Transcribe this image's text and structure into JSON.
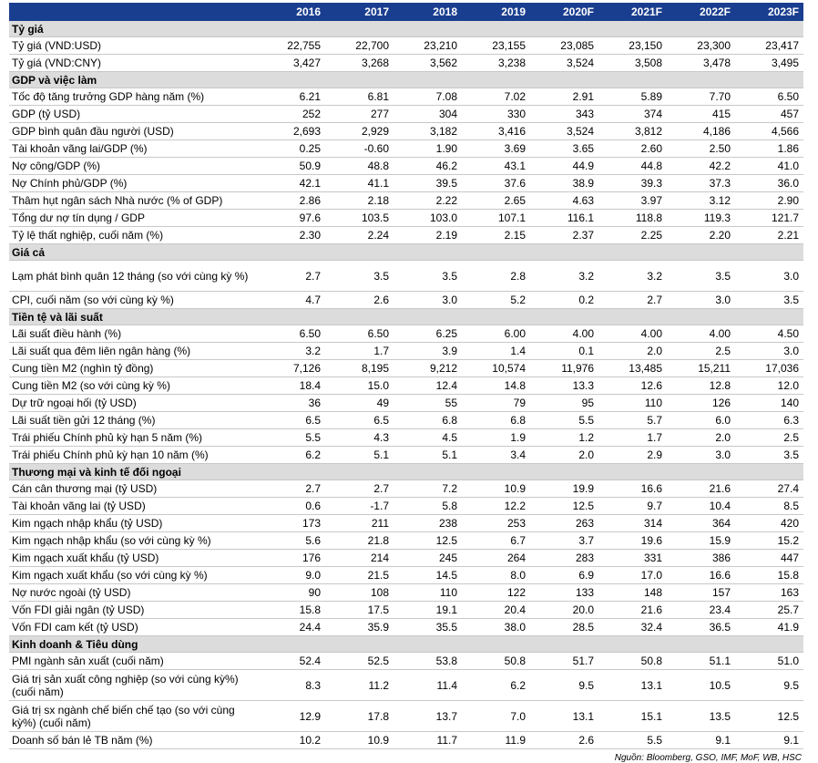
{
  "headers": [
    "",
    "2016",
    "2017",
    "2018",
    "2019",
    "2020F",
    "2021F",
    "2022F",
    "2023F"
  ],
  "sections": [
    {
      "title": "Tỷ giá",
      "rows": [
        {
          "label": "Tỷ giá (VND:USD)",
          "values": [
            "22,755",
            "22,700",
            "23,210",
            "23,155",
            "23,085",
            "23,150",
            "23,300",
            "23,417"
          ]
        },
        {
          "label": "Tỷ giá (VND:CNY)",
          "values": [
            "3,427",
            "3,268",
            "3,562",
            "3,238",
            "3,524",
            "3,508",
            "3,478",
            "3,495"
          ]
        }
      ]
    },
    {
      "title": "GDP và việc làm",
      "rows": [
        {
          "label": "Tốc độ tăng trưởng GDP hàng năm (%)",
          "values": [
            "6.21",
            "6.81",
            "7.08",
            "7.02",
            "2.91",
            "5.89",
            "7.70",
            "6.50"
          ]
        },
        {
          "label": "GDP (tỷ USD)",
          "values": [
            "252",
            "277",
            "304",
            "330",
            "343",
            "374",
            "415",
            "457"
          ]
        },
        {
          "label": "GDP bình quân đầu người (USD)",
          "values": [
            "2,693",
            "2,929",
            "3,182",
            "3,416",
            "3,524",
            "3,812",
            "4,186",
            "4,566"
          ]
        },
        {
          "label": "Tài khoản vãng lai/GDP (%)",
          "values": [
            "0.25",
            "-0.60",
            "1.90",
            "3.69",
            "3.65",
            "2.60",
            "2.50",
            "1.86"
          ]
        },
        {
          "label": "Nợ công/GDP (%)",
          "values": [
            "50.9",
            "48.8",
            "46.2",
            "43.1",
            "44.9",
            "44.8",
            "42.2",
            "41.0"
          ]
        },
        {
          "label": "Nợ Chính phủ/GDP (%)",
          "values": [
            "42.1",
            "41.1",
            "39.5",
            "37.6",
            "38.9",
            "39.3",
            "37.3",
            "36.0"
          ]
        },
        {
          "label": "Thâm hụt ngân sách Nhà nước (% of GDP)",
          "values": [
            "2.86",
            "2.18",
            "2.22",
            "2.65",
            "4.63",
            "3.97",
            "3.12",
            "2.90"
          ]
        },
        {
          "label": "Tổng dư nợ tín dụng / GDP",
          "values": [
            "97.6",
            "103.5",
            "103.0",
            "107.1",
            "116.1",
            "118.8",
            "119.3",
            "121.7"
          ]
        },
        {
          "label": "Tỷ lệ thất nghiệp, cuối năm (%)",
          "values": [
            "2.30",
            "2.24",
            "2.19",
            "2.15",
            "2.37",
            "2.25",
            "2.20",
            "2.21"
          ]
        }
      ]
    },
    {
      "title": "Giá cả",
      "rows": [
        {
          "label": "Lạm phát bình quân 12 tháng (so với cùng kỳ %)",
          "values": [
            "2.7",
            "3.5",
            "3.5",
            "2.8",
            "3.2",
            "3.2",
            "3.5",
            "3.0"
          ],
          "two_line": true
        },
        {
          "label": "CPI, cuối năm (so với cùng kỳ %)",
          "values": [
            "4.7",
            "2.6",
            "3.0",
            "5.2",
            "0.2",
            "2.7",
            "3.0",
            "3.5"
          ]
        }
      ]
    },
    {
      "title": "Tiền tệ và lãi suất",
      "rows": [
        {
          "label": "Lãi suất điều hành (%)",
          "values": [
            "6.50",
            "6.50",
            "6.25",
            "6.00",
            "4.00",
            "4.00",
            "4.00",
            "4.50"
          ]
        },
        {
          "label": "Lãi suất qua đêm liên ngân hàng (%)",
          "values": [
            "3.2",
            "1.7",
            "3.9",
            "1.4",
            "0.1",
            "2.0",
            "2.5",
            "3.0"
          ]
        },
        {
          "label": "Cung tiền M2 (nghìn tỷ đồng)",
          "values": [
            "7,126",
            "8,195",
            "9,212",
            "10,574",
            "11,976",
            "13,485",
            "15,211",
            "17,036"
          ]
        },
        {
          "label": "Cung tiền M2 (so với cùng kỳ %)",
          "values": [
            "18.4",
            "15.0",
            "12.4",
            "14.8",
            "13.3",
            "12.6",
            "12.8",
            "12.0"
          ]
        },
        {
          "label": "Dự trữ ngoại hối (tỷ USD)",
          "values": [
            "36",
            "49",
            "55",
            "79",
            "95",
            "110",
            "126",
            "140"
          ]
        },
        {
          "label": "Lãi suất tiền gửi 12 tháng (%)",
          "values": [
            "6.5",
            "6.5",
            "6.8",
            "6.8",
            "5.5",
            "5.7",
            "6.0",
            "6.3"
          ]
        },
        {
          "label": "Trái phiếu Chính phủ kỳ hạn 5 năm (%)",
          "values": [
            "5.5",
            "4.3",
            "4.5",
            "1.9",
            "1.2",
            "1.7",
            "2.0",
            "2.5"
          ]
        },
        {
          "label": "Trái phiếu Chính phủ kỳ hạn 10 năm (%)",
          "values": [
            "6.2",
            "5.1",
            "5.1",
            "3.4",
            "2.0",
            "2.9",
            "3.0",
            "3.5"
          ]
        }
      ]
    },
    {
      "title": "Thương mại và kinh tế đối ngoại",
      "rows": [
        {
          "label": "Cán cân thương mại (tỷ USD)",
          "values": [
            "2.7",
            "2.7",
            "7.2",
            "10.9",
            "19.9",
            "16.6",
            "21.6",
            "27.4"
          ]
        },
        {
          "label": "Tài khoản vãng lai (tỷ USD)",
          "values": [
            "0.6",
            "-1.7",
            "5.8",
            "12.2",
            "12.5",
            "9.7",
            "10.4",
            "8.5"
          ]
        },
        {
          "label": "Kim ngạch nhập khẩu (tỷ USD)",
          "values": [
            "173",
            "211",
            "238",
            "253",
            "263",
            "314",
            "364",
            "420"
          ]
        },
        {
          "label": "Kim ngạch nhập khẩu (so với cùng kỳ %)",
          "values": [
            "5.6",
            "21.8",
            "12.5",
            "6.7",
            "3.7",
            "19.6",
            "15.9",
            "15.2"
          ]
        },
        {
          "label": "Kim ngạch xuất khẩu (tỷ USD)",
          "values": [
            "176",
            "214",
            "245",
            "264",
            "283",
            "331",
            "386",
            "447"
          ]
        },
        {
          "label": "Kim ngạch xuất khẩu (so với cùng kỳ %)",
          "values": [
            "9.0",
            "21.5",
            "14.5",
            "8.0",
            "6.9",
            "17.0",
            "16.6",
            "15.8"
          ]
        },
        {
          "label": "Nợ nước ngoài (tỷ USD)",
          "values": [
            "90",
            "108",
            "110",
            "122",
            "133",
            "148",
            "157",
            "163"
          ]
        },
        {
          "label": "Vốn FDI giải ngân (tỷ USD)",
          "values": [
            "15.8",
            "17.5",
            "19.1",
            "20.4",
            "20.0",
            "21.6",
            "23.4",
            "25.7"
          ]
        },
        {
          "label": "Vốn FDI cam kết (tỷ USD)",
          "values": [
            "24.4",
            "35.9",
            "35.5",
            "38.0",
            "28.5",
            "32.4",
            "36.5",
            "41.9"
          ]
        }
      ]
    },
    {
      "title": "Kinh doanh & Tiêu dùng",
      "rows": [
        {
          "label": "PMI ngành sản xuất (cuối năm)",
          "values": [
            "52.4",
            "52.5",
            "53.8",
            "50.8",
            "51.7",
            "50.8",
            "51.1",
            "51.0"
          ]
        },
        {
          "label": "Giá trị sản xuất công nghiệp (so với cùng kỳ%) (cuối năm)",
          "values": [
            "8.3",
            "11.2",
            "11.4",
            "6.2",
            "9.5",
            "13.1",
            "10.5",
            "9.5"
          ],
          "two_line": true
        },
        {
          "label": "Giá trị sx ngành chế biến chế tạo (so với cùng kỳ%) (cuối năm)",
          "values": [
            "12.9",
            "17.8",
            "13.7",
            "7.0",
            "13.1",
            "15.1",
            "13.5",
            "12.5"
          ],
          "two_line": true
        },
        {
          "label": "Doanh số bán lẻ TB năm (%)",
          "values": [
            "10.2",
            "10.9",
            "11.7",
            "11.9",
            "2.6",
            "5.5",
            "9.1",
            "9.1"
          ]
        }
      ]
    }
  ],
  "source": "Nguồn: Bloomberg, GSO, IMF, MoF, WB, HSC"
}
